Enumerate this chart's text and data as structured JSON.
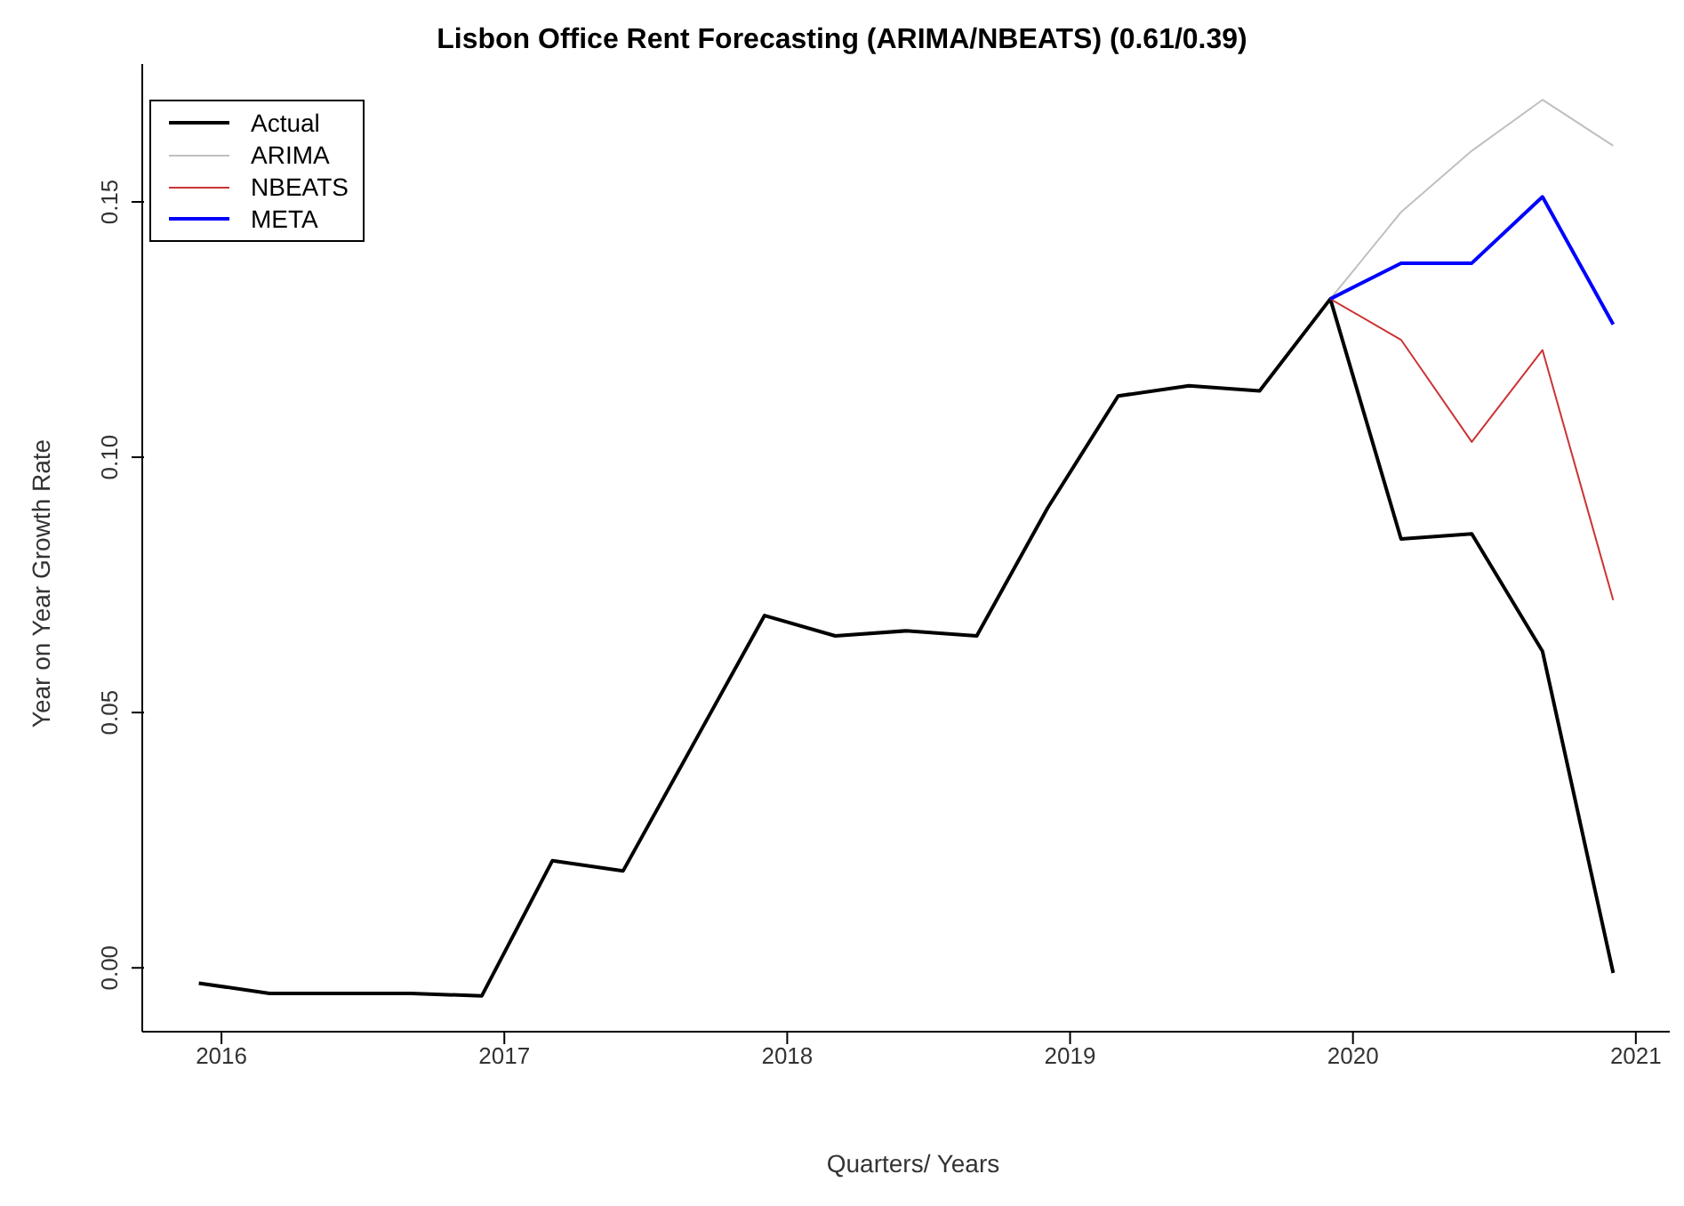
{
  "chart_data": {
    "type": "line",
    "title": "Lisbon Office Rent Forecasting (ARIMA/NBEATS) (0.61/0.39)",
    "xlabel": "Quarters/ Years",
    "ylabel": "Year on Year Growth Rate",
    "xlim": [
      2015.72,
      2021.12
    ],
    "xticks": [
      2016,
      2017,
      2018,
      2019,
      2020,
      2021
    ],
    "ylim": [
      -0.0125,
      0.177
    ],
    "yticks": [
      {
        "value": 0,
        "label": "0.00"
      },
      {
        "value": 0.05,
        "label": "0.05"
      },
      {
        "value": 0.1,
        "label": "0.10"
      },
      {
        "value": 0.15,
        "label": "0.15"
      }
    ],
    "grid": false,
    "legend": "top left",
    "marker": "none",
    "line_style": "solid",
    "series": [
      {
        "name": "Actual",
        "color": "#000000",
        "x": [
          2015.92,
          2016.17,
          2016.42,
          2016.67,
          2016.92,
          2017.17,
          2017.42,
          2017.67,
          2017.92,
          2018.17,
          2018.42,
          2018.67,
          2018.92,
          2019.17,
          2019.42,
          2019.67,
          2019.92,
          2020.17,
          2020.42,
          2020.67,
          2020.92
        ],
        "values": [
          -0.003,
          -0.005,
          -0.005,
          -0.005,
          -0.0055,
          0.021,
          0.019,
          0.044,
          0.069,
          0.065,
          0.066,
          0.065,
          0.09,
          0.112,
          0.114,
          0.113,
          0.131,
          0.084,
          0.085,
          0.062,
          -0.001
        ]
      },
      {
        "name": "ARIMA",
        "color": "#c0c0c0",
        "x": [
          2019.92,
          2020.17,
          2020.42,
          2020.67,
          2020.92
        ],
        "values": [
          0.131,
          0.148,
          0.16,
          0.17,
          0.161
        ]
      },
      {
        "name": "NBEATS",
        "color": "#cc3333",
        "x": [
          2019.92,
          2020.17,
          2020.42,
          2020.67,
          2020.92
        ],
        "values": [
          0.131,
          0.123,
          0.103,
          0.121,
          0.072
        ]
      },
      {
        "name": "META",
        "color": "#0000ff",
        "x": [
          2019.92,
          2020.17,
          2020.42,
          2020.67,
          2020.92
        ],
        "values": [
          0.131,
          0.138,
          0.138,
          0.151,
          0.126
        ]
      }
    ]
  }
}
